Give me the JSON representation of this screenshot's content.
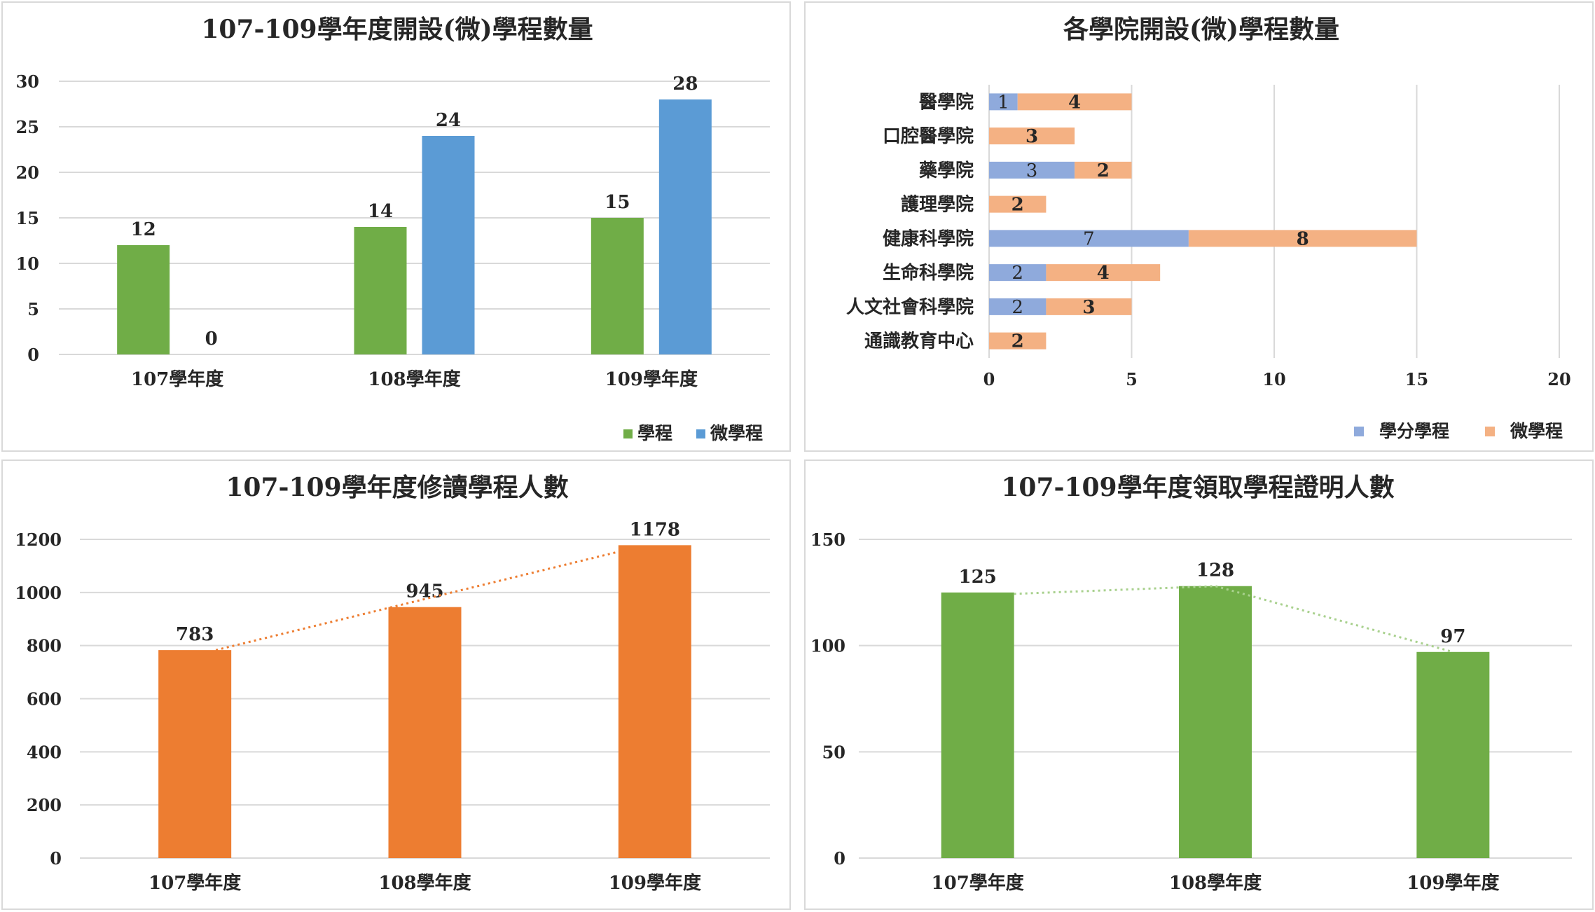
{
  "chart_data": [
    {
      "id": "c1",
      "type": "bar",
      "title": "107-109學年度開設(微)學程數量",
      "categories": [
        "107學年度",
        "108學年度",
        "109學年度"
      ],
      "series": [
        {
          "name": "學程",
          "values": [
            12,
            14,
            15
          ],
          "color": "#70ad47"
        },
        {
          "name": "微學程",
          "values": [
            0,
            24,
            28
          ],
          "color": "#5b9bd5"
        }
      ],
      "ylim": [
        0,
        30
      ],
      "yticks": [
        0,
        5,
        10,
        15,
        20,
        25,
        30
      ],
      "grid": true,
      "legend": "bottom-right"
    },
    {
      "id": "c2",
      "type": "bar",
      "orientation": "horizontal",
      "stacked": true,
      "title": "各學院開設(微)學程數量",
      "categories": [
        "醫學院",
        "口腔醫學院",
        "藥學院",
        "護理學院",
        "健康科學院",
        "生命科學院",
        "人文社會科學院",
        "通識教育中心"
      ],
      "series": [
        {
          "name": "學分學程",
          "values": [
            1,
            0,
            3,
            0,
            7,
            2,
            2,
            0
          ],
          "color": "#8faadc"
        },
        {
          "name": "微學程",
          "values": [
            4,
            3,
            2,
            2,
            8,
            4,
            3,
            2
          ],
          "color": "#f4b183"
        }
      ],
      "xlim": [
        0,
        20
      ],
      "xticks": [
        0,
        5,
        10,
        15,
        20
      ],
      "grid": true,
      "legend": "bottom-right"
    },
    {
      "id": "c3",
      "type": "bar",
      "title": "107-109學年度修讀學程人數",
      "categories": [
        "107學年度",
        "108學年度",
        "109學年度"
      ],
      "series": [
        {
          "values": [
            783,
            945,
            1178
          ],
          "color": "#ed7d31"
        }
      ],
      "trendline": {
        "style": "dotted",
        "color": "#ed7d31"
      },
      "ylim": [
        0,
        1200
      ],
      "yticks": [
        0,
        200,
        400,
        600,
        800,
        1000,
        1200
      ],
      "grid": true
    },
    {
      "id": "c4",
      "type": "bar",
      "title": "107-109學年度領取學程證明人數",
      "categories": [
        "107學年度",
        "108學年度",
        "109學年度"
      ],
      "series": [
        {
          "values": [
            125,
            128,
            97
          ],
          "color": "#70ad47"
        }
      ],
      "connector_line": {
        "style": "dotted",
        "color": "#a9d18e"
      },
      "ylim": [
        0,
        150
      ],
      "yticks": [
        0,
        50,
        100,
        150
      ],
      "grid": true
    }
  ]
}
